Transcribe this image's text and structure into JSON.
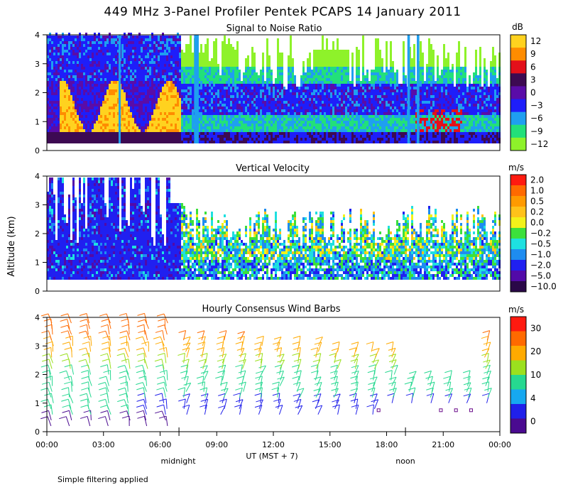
{
  "chart_data": {
    "type": "heatmap",
    "title": "449 MHz 3-Panel Profiler Pentek PCAPS 14 January 2011",
    "ylabel": "Altitude (km)",
    "xlabel": "UT  (MST + 7)",
    "note": "Simple filtering applied",
    "x_ticks": [
      "00:00",
      "03:00",
      "06:00",
      "09:00",
      "12:00",
      "15:00",
      "18:00",
      "21:00",
      "00:00"
    ],
    "x_annotations": [
      {
        "label": "midnight",
        "hour": 7
      },
      {
        "label": "noon",
        "hour": 19
      }
    ],
    "xlim_hours": [
      0,
      24
    ],
    "ylim_km": [
      0,
      4
    ],
    "y_ticks": [
      "0",
      "1",
      "2",
      "3",
      "4"
    ],
    "panels": [
      {
        "title": "Signal to Noise Ratio",
        "units": "dB",
        "colorbar_labels": [
          "12",
          "9",
          "6",
          "3",
          "0",
          "−3",
          "−6",
          "−9",
          "−12"
        ],
        "colorbar_colors": [
          "#ffd21f",
          "#ff8c00",
          "#e3101a",
          "#3d0a52",
          "#5a0ca8",
          "#1e1efa",
          "#1f9ff0",
          "#22e07a",
          "#8ef22a"
        ]
      },
      {
        "title": "Vertical Velocity",
        "units": "m/s",
        "colorbar_labels": [
          "2.0",
          "1.0",
          "0.5",
          "0.2",
          "0.0",
          "−0.2",
          "−0.5",
          "−1.0",
          "−2.0",
          "−5.0",
          "−10.0"
        ],
        "colorbar_colors": [
          "#ff1a10",
          "#ff6a00",
          "#ff9a00",
          "#ffc21a",
          "#f2f21a",
          "#3ce03c",
          "#1ee0e0",
          "#1e8cf0",
          "#2020f0",
          "#520aa8",
          "#2a0848"
        ]
      },
      {
        "title": "Hourly Consensus Wind Barbs",
        "units": "m/s",
        "colorbar_labels": [
          "30",
          "20",
          "10",
          "4",
          "0"
        ],
        "colorbar_colors": [
          "#ff1a10",
          "#ff6a00",
          "#ffaa00",
          "#9be01e",
          "#26d890",
          "#16a8f0",
          "#2020ea",
          "#4a0a90"
        ]
      }
    ]
  }
}
